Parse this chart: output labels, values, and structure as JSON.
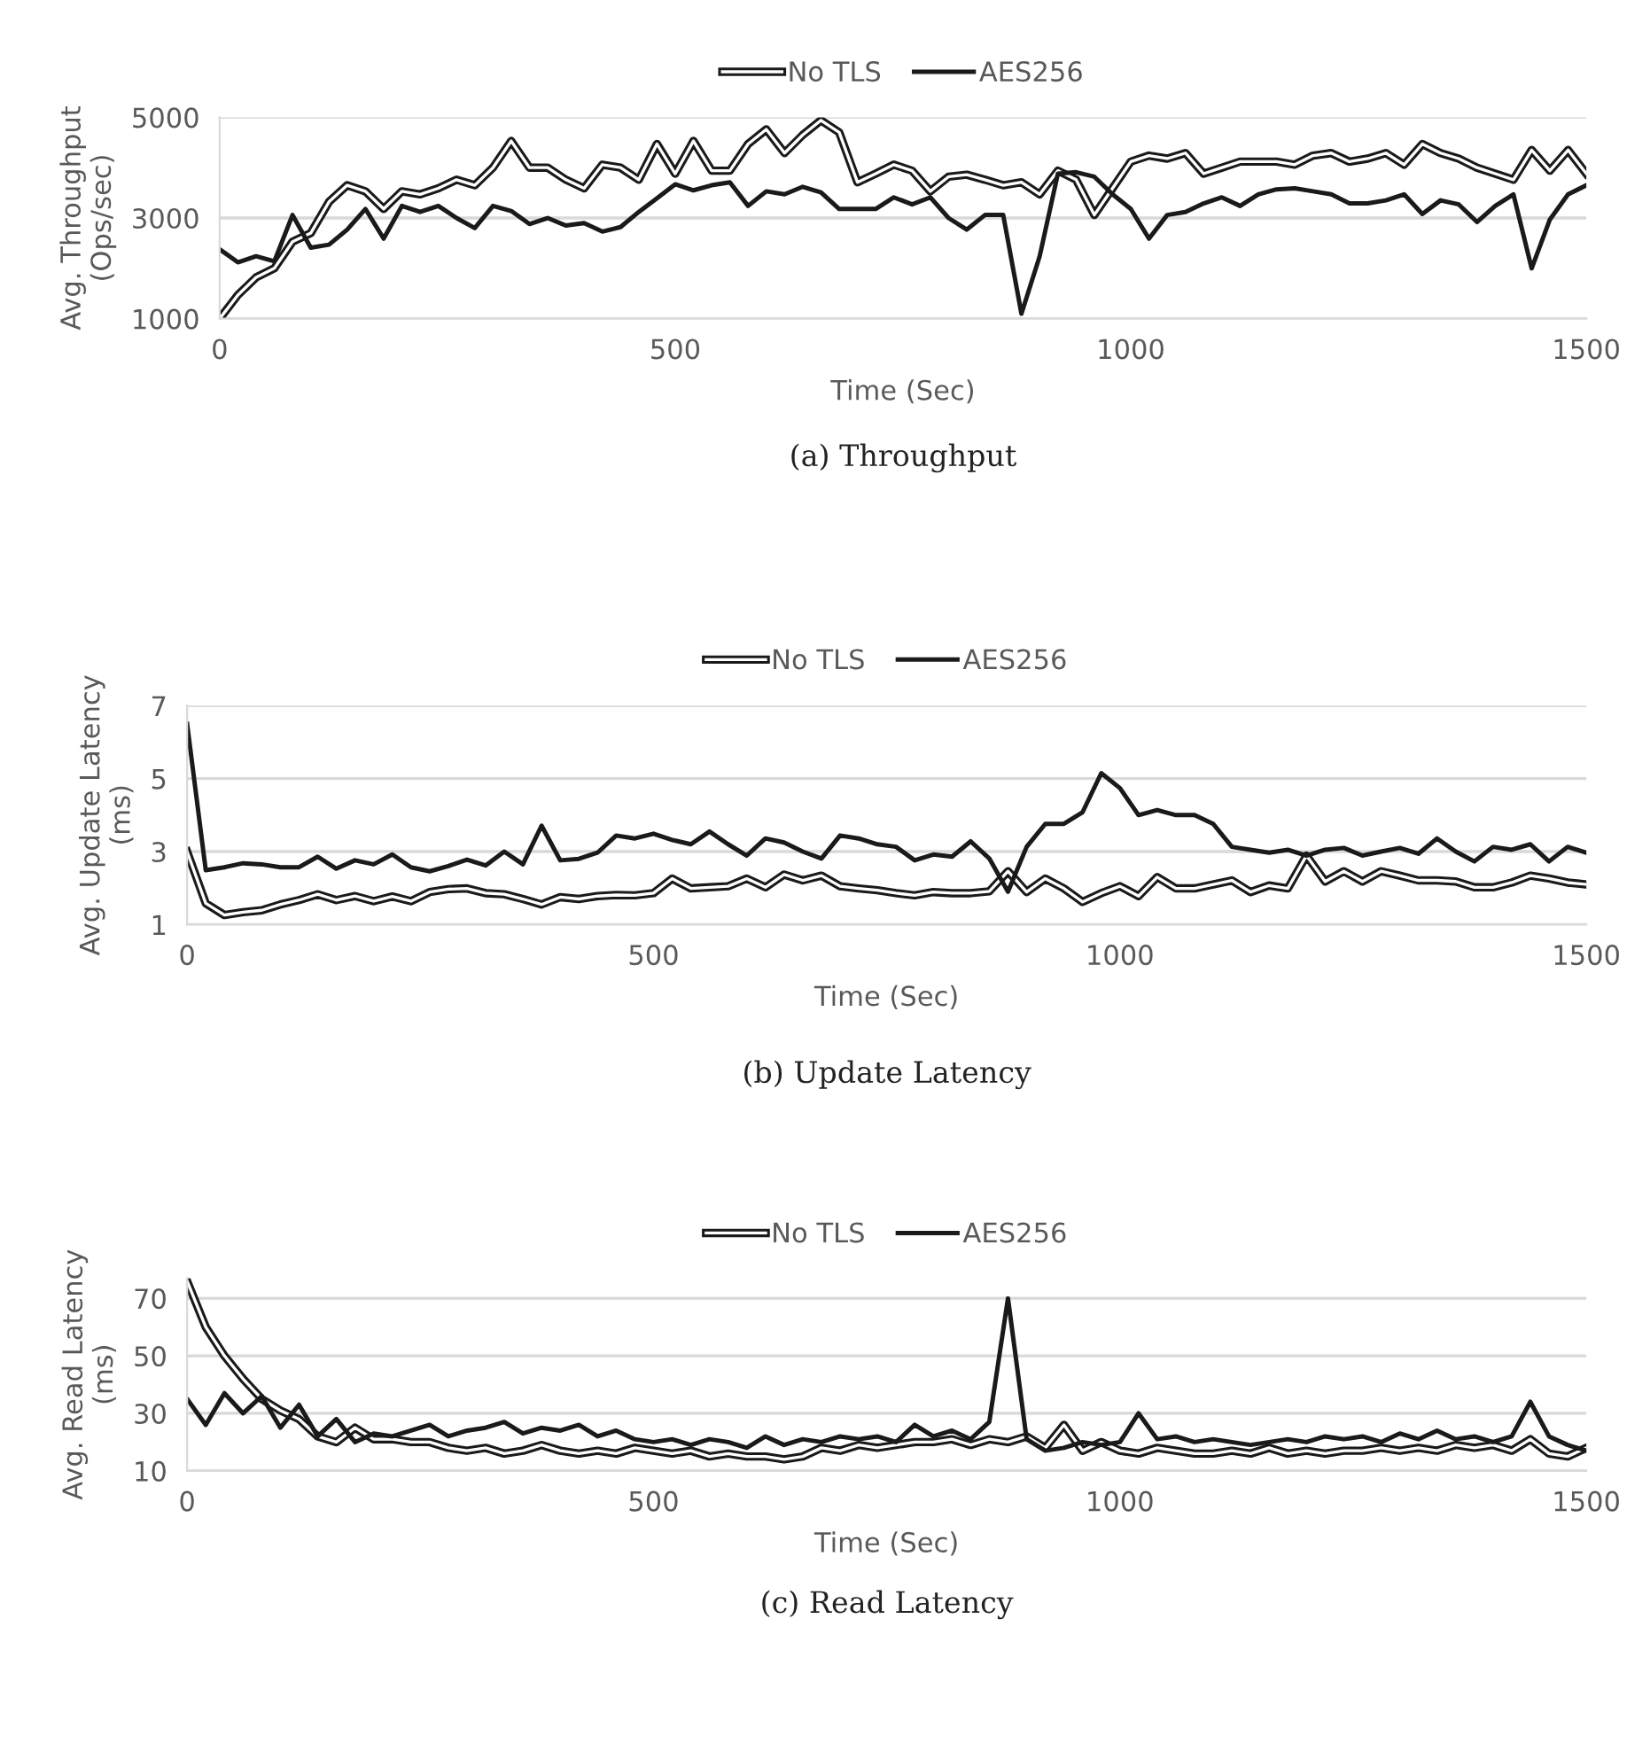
{
  "chart_data": [
    {
      "type": "line",
      "xlabel": "Time (Sec)",
      "ylabel": "Avg. Throughput\n(Ops/sec)",
      "annotations": [
        "(a) Throughput"
      ],
      "x": [
        0,
        20,
        40,
        60,
        80,
        100,
        120,
        140,
        160,
        180,
        200,
        220,
        240,
        260,
        280,
        300,
        320,
        340,
        360,
        380,
        400,
        420,
        440,
        460,
        480,
        500,
        520,
        540,
        560,
        580,
        600,
        620,
        640,
        660,
        680,
        700,
        720,
        740,
        760,
        780,
        800,
        820,
        840,
        860,
        880,
        900,
        920,
        940,
        960,
        980,
        1000,
        1020,
        1040,
        1060,
        1080,
        1100,
        1120,
        1140,
        1160,
        1180,
        1200,
        1220,
        1240,
        1260,
        1280,
        1300,
        1320,
        1340,
        1360,
        1380,
        1400,
        1420,
        1440,
        1460,
        1480,
        1500
      ],
      "xlim": [
        0,
        1500
      ],
      "xticks": [
        0,
        500,
        1000,
        1500
      ],
      "ylim": [
        1000,
        5000
      ],
      "yticks": [
        1000,
        3000,
        5000
      ],
      "grid": "y",
      "legend": "top",
      "marker": "none",
      "series": [
        {
          "name": "No TLS",
          "color": "#1a1a1a",
          "values": [
            1000,
            1470,
            1820,
            2000,
            2530,
            2700,
            3320,
            3650,
            3530,
            3180,
            3530,
            3470,
            3590,
            3760,
            3650,
            4000,
            4530,
            4000,
            4000,
            3760,
            3590,
            4060,
            4000,
            3760,
            4470,
            3880,
            4530,
            3940,
            3940,
            4470,
            4760,
            4290,
            4650,
            4940,
            4700,
            3710,
            3880,
            4060,
            3940,
            3530,
            3820,
            3860,
            3760,
            3650,
            3710,
            3470,
            3940,
            3760,
            3060,
            3590,
            4120,
            4240,
            4180,
            4290,
            3880,
            4000,
            4120,
            4120,
            4120,
            4060,
            4240,
            4290,
            4120,
            4180,
            4290,
            4060,
            4470,
            4290,
            4180,
            4000,
            3880,
            3760,
            4350,
            3940,
            4350,
            3880
          ]
        },
        {
          "name": "AES256",
          "color": "#1a1a1a",
          "values": [
            2380,
            2120,
            2240,
            2140,
            3060,
            2410,
            2470,
            2770,
            3180,
            2590,
            3240,
            3120,
            3240,
            3000,
            2800,
            3240,
            3140,
            2880,
            3000,
            2850,
            2900,
            2730,
            2820,
            3120,
            3390,
            3670,
            3550,
            3650,
            3710,
            3240,
            3530,
            3470,
            3620,
            3510,
            3180,
            3180,
            3180,
            3410,
            3270,
            3410,
            3000,
            2770,
            3060,
            3060,
            1100,
            2240,
            3880,
            3910,
            3820,
            3470,
            3180,
            2590,
            3060,
            3120,
            3290,
            3410,
            3240,
            3470,
            3570,
            3590,
            3530,
            3470,
            3290,
            3290,
            3350,
            3470,
            3080,
            3350,
            3270,
            2920,
            3240,
            3470,
            2000,
            2970,
            3470,
            3650
          ]
        }
      ]
    },
    {
      "type": "line",
      "xlabel": "Time (Sec)",
      "ylabel": "Avg. Update Latency\n(ms)",
      "annotations": [
        "(b) Update Latency"
      ],
      "x": [
        0,
        20,
        40,
        60,
        80,
        100,
        120,
        140,
        160,
        180,
        200,
        220,
        240,
        260,
        280,
        300,
        320,
        340,
        360,
        380,
        400,
        420,
        440,
        460,
        480,
        500,
        520,
        540,
        560,
        580,
        600,
        620,
        640,
        660,
        680,
        700,
        720,
        740,
        760,
        780,
        800,
        820,
        840,
        860,
        880,
        900,
        920,
        940,
        960,
        980,
        1000,
        1020,
        1040,
        1060,
        1080,
        1100,
        1120,
        1140,
        1160,
        1180,
        1200,
        1220,
        1240,
        1260,
        1280,
        1300,
        1320,
        1340,
        1360,
        1380,
        1400,
        1420,
        1440,
        1460,
        1480,
        1500
      ],
      "xlim": [
        0,
        1500
      ],
      "xticks": [
        0,
        500,
        1000,
        1500
      ],
      "ylim": [
        1,
        7
      ],
      "yticks": [
        1,
        3,
        5,
        7
      ],
      "grid": "y",
      "legend": "top",
      "marker": "none",
      "series": [
        {
          "name": "No TLS",
          "color": "#1a1a1a",
          "values": [
            3.0,
            1.58,
            1.26,
            1.34,
            1.39,
            1.55,
            1.67,
            1.83,
            1.67,
            1.78,
            1.64,
            1.77,
            1.64,
            1.89,
            1.97,
            1.99,
            1.86,
            1.83,
            1.7,
            1.55,
            1.75,
            1.7,
            1.78,
            1.81,
            1.8,
            1.86,
            2.26,
            1.99,
            2.02,
            2.05,
            2.26,
            2.02,
            2.37,
            2.21,
            2.34,
            2.05,
            1.99,
            1.94,
            1.86,
            1.8,
            1.89,
            1.86,
            1.86,
            1.91,
            2.46,
            1.89,
            2.26,
            1.99,
            1.62,
            1.86,
            2.05,
            1.78,
            2.3,
            1.99,
            1.99,
            2.1,
            2.21,
            1.89,
            2.07,
            1.99,
            2.89,
            2.18,
            2.46,
            2.18,
            2.46,
            2.34,
            2.21,
            2.21,
            2.18,
            2.02,
            2.02,
            2.15,
            2.34,
            2.26,
            2.15,
            2.1
          ]
        },
        {
          "name": "AES256",
          "color": "#1a1a1a",
          "values": [
            6.5,
            2.49,
            2.57,
            2.68,
            2.65,
            2.57,
            2.57,
            2.86,
            2.53,
            2.76,
            2.65,
            2.92,
            2.57,
            2.46,
            2.6,
            2.78,
            2.62,
            3.0,
            2.65,
            3.71,
            2.76,
            2.8,
            2.97,
            3.44,
            3.36,
            3.49,
            3.32,
            3.2,
            3.55,
            3.2,
            2.89,
            3.36,
            3.25,
            3.0,
            2.81,
            3.44,
            3.36,
            3.2,
            3.13,
            2.76,
            2.92,
            2.86,
            3.28,
            2.81,
            1.9,
            3.13,
            3.76,
            3.76,
            4.08,
            5.15,
            4.74,
            4.0,
            4.14,
            4.0,
            4.0,
            3.76,
            3.13,
            3.05,
            2.97,
            3.05,
            2.89,
            3.05,
            3.1,
            2.89,
            3.0,
            3.1,
            2.94,
            3.36,
            3.0,
            2.73,
            3.13,
            3.05,
            3.2,
            2.73,
            3.13,
            2.97
          ]
        }
      ]
    },
    {
      "type": "line",
      "xlabel": "Time (Sec)",
      "ylabel": "Avg. Read Latency\n(ms)",
      "annotations": [
        "(c) Read Latency"
      ],
      "x": [
        0,
        20,
        40,
        60,
        80,
        100,
        120,
        140,
        160,
        180,
        200,
        220,
        240,
        260,
        280,
        300,
        320,
        340,
        360,
        380,
        400,
        420,
        440,
        460,
        480,
        500,
        520,
        540,
        560,
        580,
        600,
        620,
        640,
        660,
        680,
        700,
        720,
        740,
        760,
        780,
        800,
        820,
        840,
        860,
        880,
        900,
        920,
        940,
        960,
        980,
        1000,
        1020,
        1040,
        1060,
        1080,
        1100,
        1120,
        1140,
        1160,
        1180,
        1200,
        1220,
        1240,
        1260,
        1280,
        1300,
        1320,
        1340,
        1360,
        1380,
        1400,
        1420,
        1440,
        1460,
        1480,
        1500
      ],
      "xlim": [
        0,
        1500
      ],
      "xticks": [
        0,
        500,
        1000,
        1500
      ],
      "ylim": [
        10,
        77
      ],
      "yticks": [
        10,
        30,
        50,
        70
      ],
      "grid": "y",
      "legend": "top",
      "marker": "none",
      "series": [
        {
          "name": "No TLS",
          "color": "#1a1a1a",
          "values": [
            76,
            60,
            50,
            42,
            35,
            31,
            28,
            22,
            20,
            25,
            21,
            21,
            20,
            20,
            18,
            17,
            18,
            16,
            17,
            19,
            17,
            16,
            17,
            16,
            18,
            17,
            16,
            17,
            15,
            16,
            15,
            15,
            14,
            15,
            18,
            17,
            19,
            18,
            19,
            20,
            20,
            21,
            19,
            21,
            20,
            22,
            18,
            26,
            17,
            20,
            17,
            16,
            18,
            17,
            16,
            16,
            17,
            16,
            18,
            16,
            17,
            16,
            17,
            17,
            18,
            17,
            18,
            17,
            19,
            18,
            19,
            17,
            21,
            16,
            15,
            18
          ]
        },
        {
          "name": "AES256",
          "color": "#1a1a1a",
          "values": [
            35,
            26,
            37,
            30,
            36,
            25,
            33,
            22,
            28,
            20,
            23,
            22,
            24,
            26,
            22,
            24,
            25,
            27,
            23,
            25,
            24,
            26,
            22,
            24,
            21,
            20,
            21,
            19,
            21,
            20,
            18,
            22,
            19,
            21,
            20,
            22,
            21,
            22,
            20,
            26,
            22,
            24,
            21,
            27,
            70,
            21,
            17,
            18,
            20,
            19,
            20,
            30,
            21,
            22,
            20,
            21,
            20,
            19,
            20,
            21,
            20,
            22,
            21,
            22,
            20,
            23,
            21,
            24,
            21,
            22,
            20,
            22,
            34,
            22,
            19,
            17
          ]
        }
      ]
    }
  ]
}
